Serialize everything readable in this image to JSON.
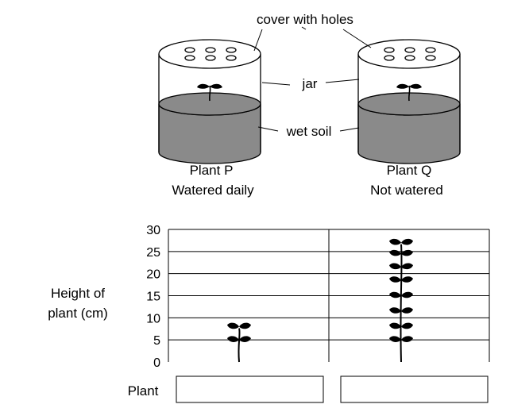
{
  "apparatus": {
    "cover_label": "cover with holes",
    "jar_label": "jar",
    "soil_label": "wet soil",
    "plant_p": {
      "name": "Plant P",
      "condition": "Watered daily"
    },
    "plant_q": {
      "name": "Plant Q",
      "condition": "Not watered"
    }
  },
  "chart_data": {
    "type": "bar",
    "ylabel_line1": "Height of",
    "ylabel_line2": "plant (cm)",
    "xlabel": "Plant",
    "ylim": [
      0,
      30
    ],
    "yticks": [
      0,
      5,
      10,
      15,
      20,
      25,
      30
    ],
    "categories": [
      "",
      ""
    ],
    "values": [
      8,
      27
    ],
    "leaf_levels": [
      [
        5,
        8
      ],
      [
        5,
        8,
        11.5,
        15,
        18.5,
        21.5,
        24.5,
        27
      ]
    ],
    "colors": {
      "soil": "#8a8a8a",
      "plant": "#000000",
      "grid": "#000000"
    }
  }
}
